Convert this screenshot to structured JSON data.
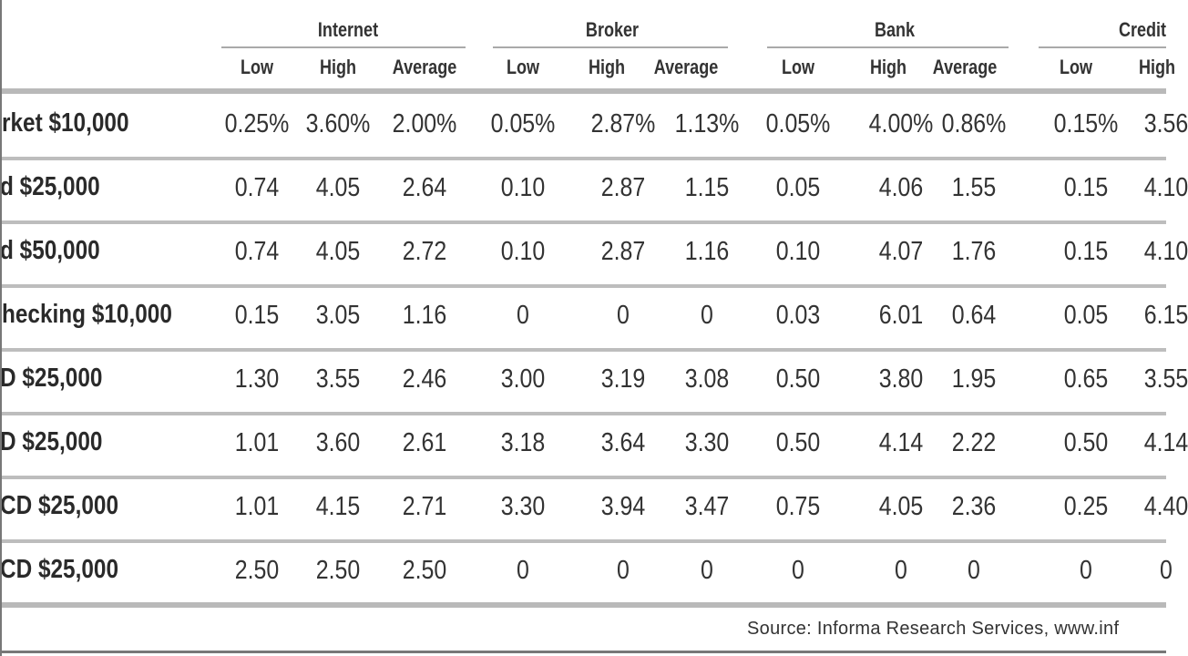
{
  "table": {
    "groups": [
      "Internet",
      "Broker",
      "Bank",
      "Credit"
    ],
    "subheaders": [
      "Low",
      "High",
      "Average"
    ],
    "rows": [
      {
        "label": "rket $10,000",
        "values": [
          "0.25%",
          "3.60%",
          "2.00%",
          "0.05%",
          "2.87%",
          "1.13%",
          "0.05%",
          "4.00%",
          "0.86%",
          "0.15%",
          "3.56"
        ]
      },
      {
        "label": "d $25,000",
        "values": [
          "0.74",
          "4.05",
          "2.64",
          "0.10",
          "2.87",
          "1.15",
          "0.05",
          "4.06",
          "1.55",
          "0.15",
          "4.10"
        ]
      },
      {
        "label": "d $50,000",
        "values": [
          "0.74",
          "4.05",
          "2.72",
          "0.10",
          "2.87",
          "1.16",
          "0.10",
          "4.07",
          "1.76",
          "0.15",
          "4.10"
        ]
      },
      {
        "label": "hecking $10,000",
        "values": [
          "0.15",
          "3.05",
          "1.16",
          "0",
          "0",
          "0",
          "0.03",
          "6.01",
          "0.64",
          "0.05",
          "6.15"
        ]
      },
      {
        "label": "D $25,000",
        "values": [
          "1.30",
          "3.55",
          "2.46",
          "3.00",
          "3.19",
          "3.08",
          "0.50",
          "3.80",
          "1.95",
          "0.65",
          "3.55"
        ]
      },
      {
        "label": "D $25,000",
        "values": [
          "1.01",
          "3.60",
          "2.61",
          "3.18",
          "3.64",
          "3.30",
          "0.50",
          "4.14",
          "2.22",
          "0.50",
          "4.14"
        ]
      },
      {
        "label": "CD $25,000",
        "values": [
          "1.01",
          "4.15",
          "2.71",
          "3.30",
          "3.94",
          "3.47",
          "0.75",
          "4.05",
          "2.36",
          "0.25",
          "4.40"
        ]
      },
      {
        "label": "CD $25,000",
        "values": [
          "2.50",
          "2.50",
          "2.50",
          "0",
          "0",
          "0",
          "0",
          "0",
          "0",
          "0",
          "0"
        ]
      }
    ]
  },
  "source": "Source: Informa Research Services, www.inf"
}
